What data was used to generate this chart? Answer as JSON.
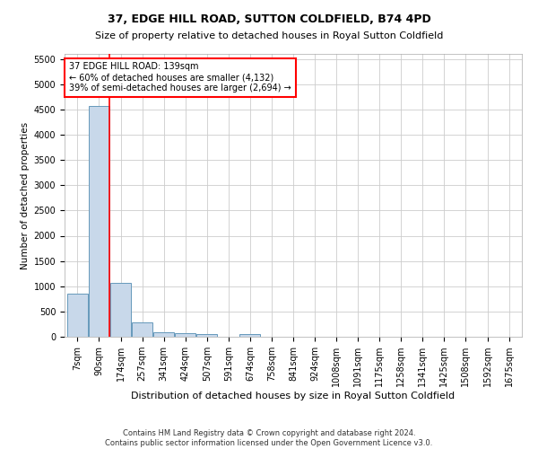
{
  "title": "37, EDGE HILL ROAD, SUTTON COLDFIELD, B74 4PD",
  "subtitle": "Size of property relative to detached houses in Royal Sutton Coldfield",
  "xlabel": "Distribution of detached houses by size in Royal Sutton Coldfield",
  "ylabel": "Number of detached properties",
  "footnote1": "Contains HM Land Registry data © Crown copyright and database right 2024.",
  "footnote2": "Contains public sector information licensed under the Open Government Licence v3.0.",
  "bar_labels": [
    "7sqm",
    "90sqm",
    "174sqm",
    "257sqm",
    "341sqm",
    "424sqm",
    "507sqm",
    "591sqm",
    "674sqm",
    "758sqm",
    "841sqm",
    "924sqm",
    "1008sqm",
    "1091sqm",
    "1175sqm",
    "1258sqm",
    "1341sqm",
    "1425sqm",
    "1508sqm",
    "1592sqm",
    "1675sqm"
  ],
  "bar_values": [
    850,
    4570,
    1060,
    285,
    90,
    80,
    58,
    0,
    48,
    0,
    0,
    0,
    0,
    0,
    0,
    0,
    0,
    0,
    0,
    0,
    0
  ],
  "bar_color": "#c8d8ea",
  "bar_edge_color": "#6699bb",
  "annotation_text": "37 EDGE HILL ROAD: 139sqm\n← 60% of detached houses are smaller (4,132)\n39% of semi-detached houses are larger (2,694) →",
  "annotation_box_color": "white",
  "annotation_box_edge_color": "red",
  "red_line_color": "red",
  "red_line_x": 1.47,
  "ylim": [
    0,
    5600
  ],
  "yticks": [
    0,
    500,
    1000,
    1500,
    2000,
    2500,
    3000,
    3500,
    4000,
    4500,
    5000,
    5500
  ],
  "grid_color": "#cccccc",
  "background_color": "white",
  "title_fontsize": 9,
  "subtitle_fontsize": 8,
  "xlabel_fontsize": 8,
  "ylabel_fontsize": 7.5,
  "tick_fontsize": 7,
  "annot_fontsize": 7,
  "footnote_fontsize": 6
}
